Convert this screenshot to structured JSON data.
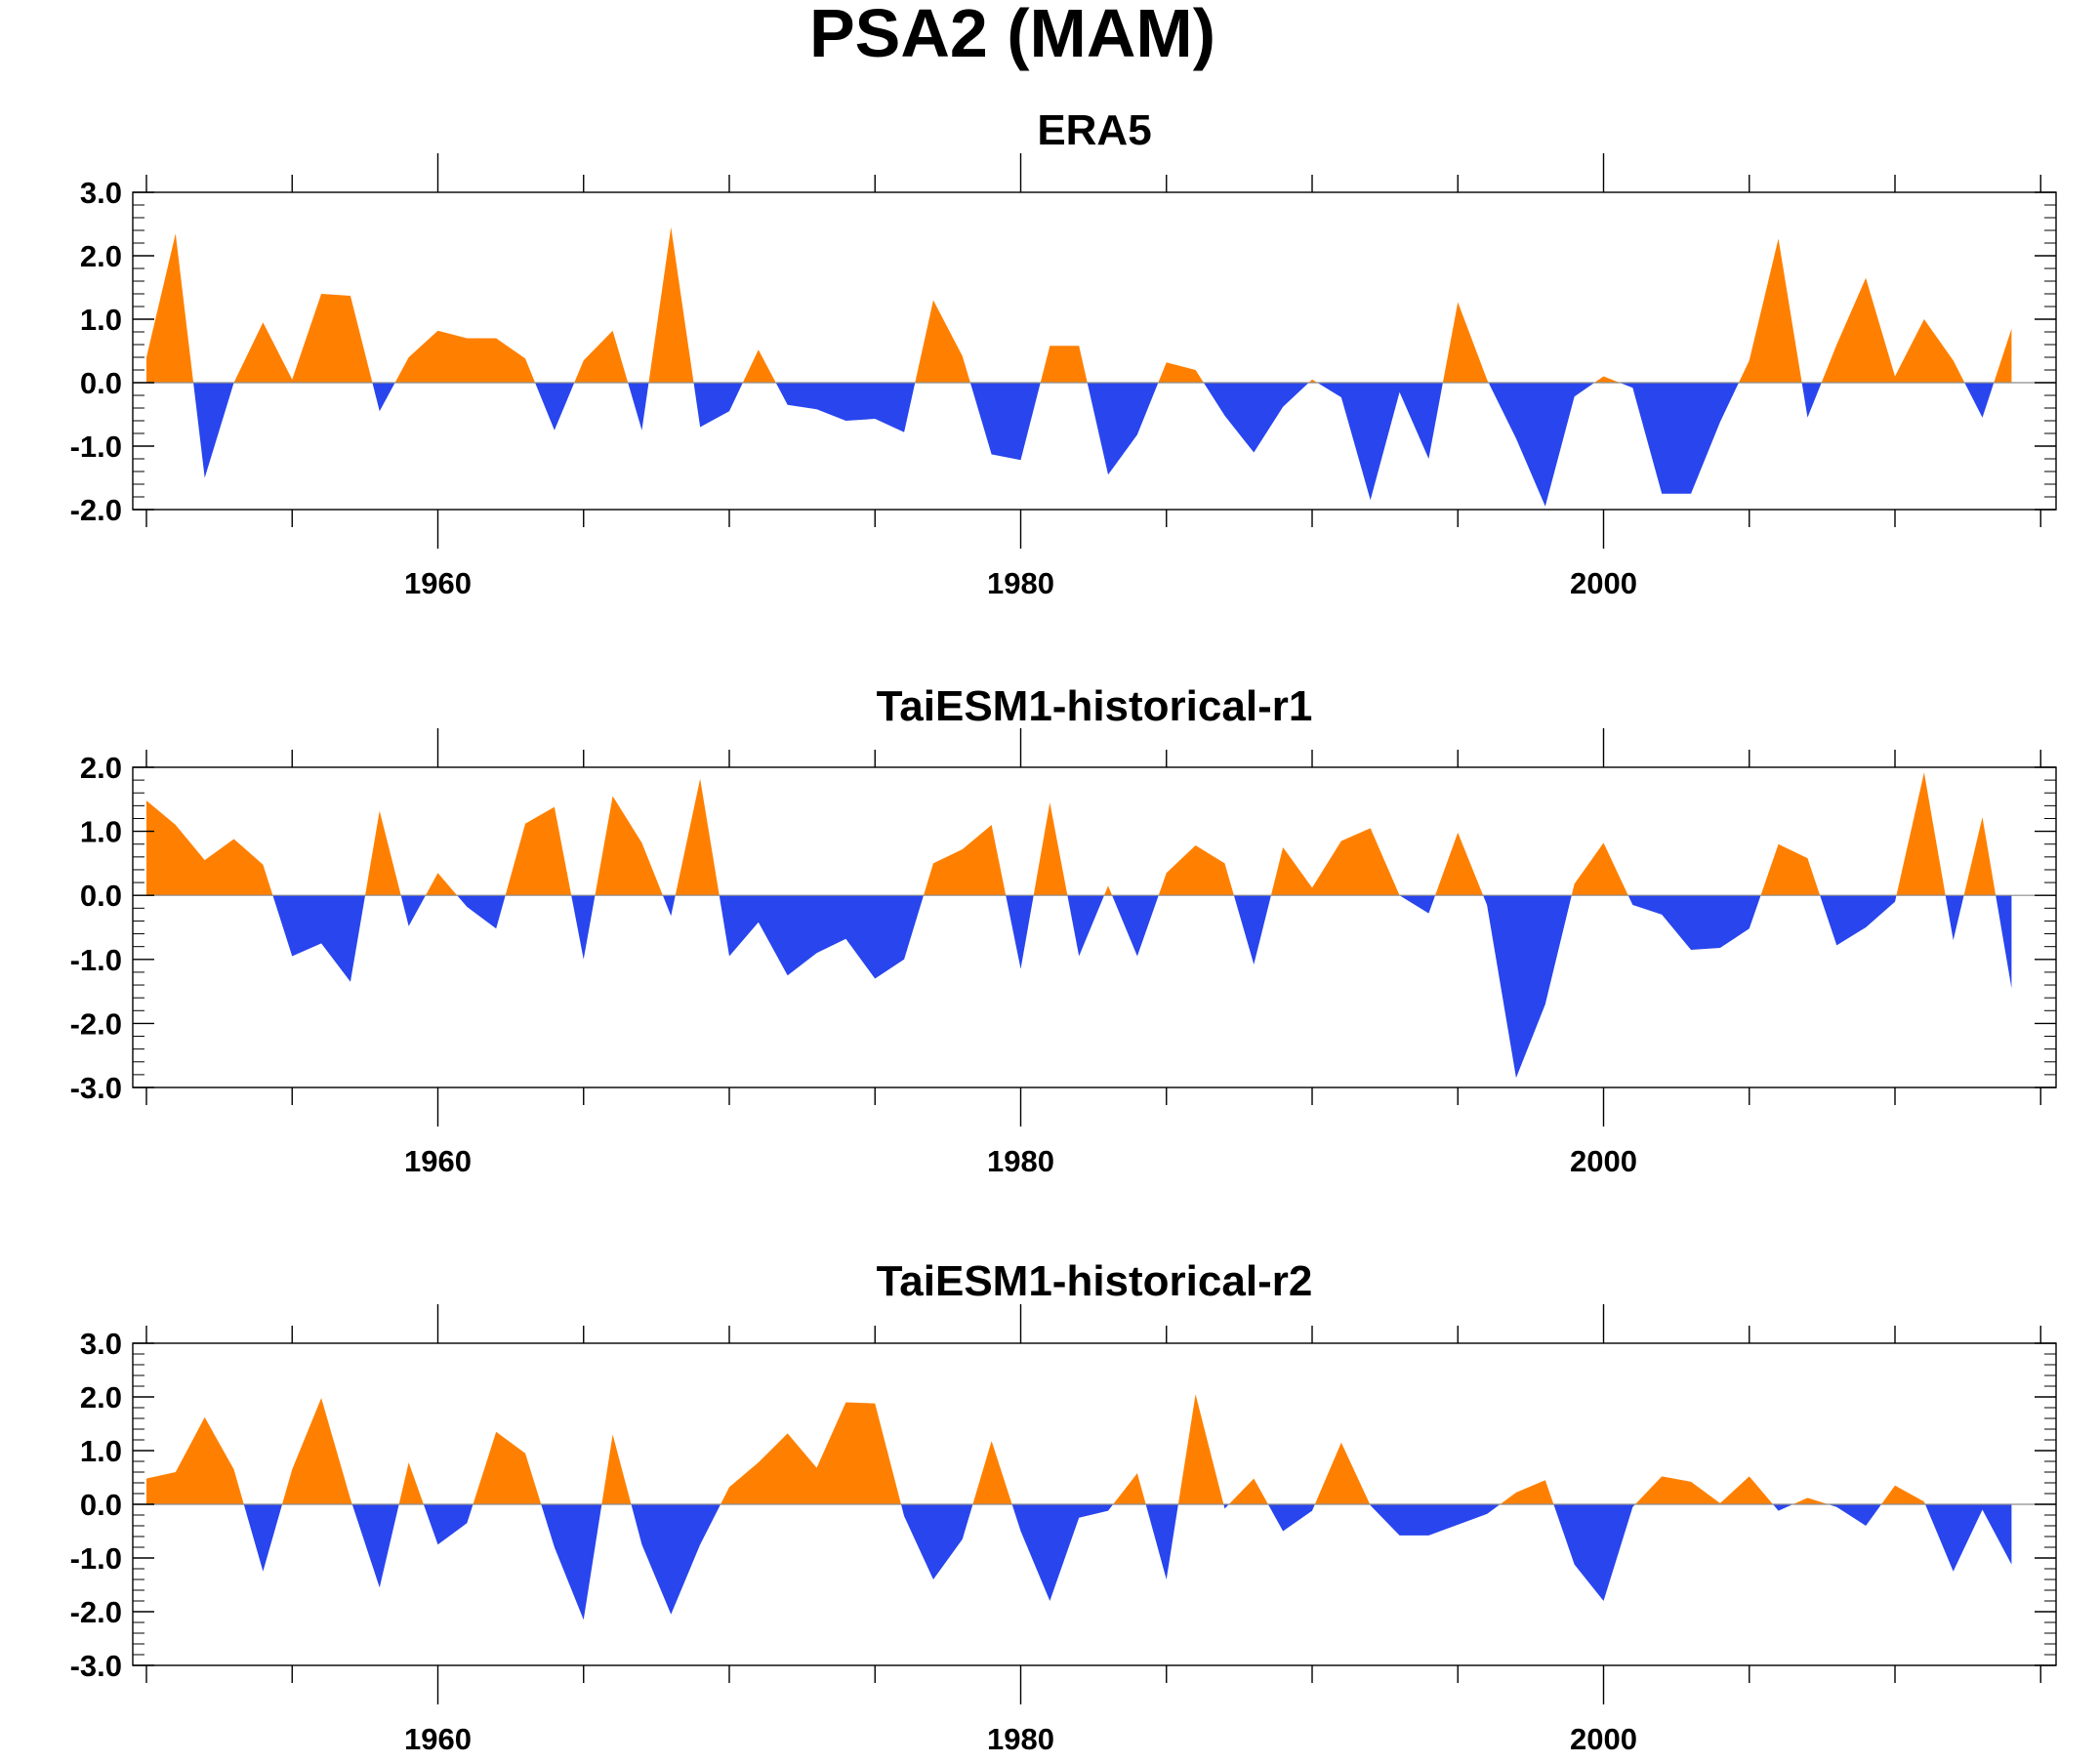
{
  "figure_title": "PSA2 (MAM)",
  "colors": {
    "positive": "#ff8000",
    "negative": "#2845ee",
    "frame": "#000000",
    "zero_line": "#8c8c8c"
  },
  "chart_data": [
    {
      "type": "area",
      "title": "ERA5",
      "xlim": [
        1950,
        2014
      ],
      "x_ticks": [
        1960,
        1980,
        2000
      ],
      "x_tick_labels": [
        "1960",
        "1980",
        "2000"
      ],
      "ylim": [
        -2.0,
        3.0
      ],
      "y_ticks": [
        -2.0,
        -1.0,
        0.0,
        1.0,
        2.0,
        3.0
      ],
      "y_tick_labels": [
        "-2.0",
        "-1.0",
        "0.0",
        "1.0",
        "2.0",
        "3.0"
      ],
      "x": [
        1950,
        1951,
        1952,
        1953,
        1954,
        1955,
        1956,
        1957,
        1958,
        1959,
        1960,
        1961,
        1962,
        1963,
        1964,
        1965,
        1966,
        1967,
        1968,
        1969,
        1970,
        1971,
        1972,
        1973,
        1974,
        1975,
        1976,
        1977,
        1978,
        1979,
        1980,
        1981,
        1982,
        1983,
        1984,
        1985,
        1986,
        1987,
        1988,
        1989,
        1990,
        1991,
        1992,
        1993,
        1994,
        1995,
        1996,
        1997,
        1998,
        1999,
        2000,
        2001,
        2002,
        2003,
        2004,
        2005,
        2006,
        2007,
        2008,
        2009,
        2010,
        2011,
        2012,
        2013,
        2014
      ],
      "values": [
        0.4,
        2.35,
        -1.5,
        0.0,
        0.95,
        0.05,
        1.4,
        1.37,
        -0.45,
        0.4,
        0.82,
        0.7,
        0.7,
        0.38,
        -0.75,
        0.35,
        0.82,
        -0.75,
        2.45,
        -0.7,
        -0.45,
        0.52,
        -0.35,
        -0.42,
        -0.6,
        -0.57,
        -0.78,
        1.3,
        0.42,
        -1.13,
        -1.22,
        0.58,
        0.58,
        -1.45,
        -0.82,
        0.32,
        0.2,
        -0.52,
        -1.1,
        -0.38,
        0.05,
        -0.23,
        -1.85,
        -0.15,
        -1.2,
        1.27,
        0.05,
        -0.88,
        -1.95,
        -0.22,
        0.1,
        -0.08,
        -1.75,
        -1.75,
        -0.62,
        0.35,
        2.27,
        -0.55,
        0.6,
        1.65,
        0.1,
        1.0,
        0.35,
        -0.55,
        0.85
      ]
    },
    {
      "type": "area",
      "title": "TaiESM1-historical-r1",
      "xlim": [
        1950,
        2014
      ],
      "x_ticks": [
        1960,
        1980,
        2000
      ],
      "x_tick_labels": [
        "1960",
        "1980",
        "2000"
      ],
      "ylim": [
        -3.0,
        2.0
      ],
      "y_ticks": [
        -3.0,
        -2.0,
        -1.0,
        0.0,
        1.0,
        2.0
      ],
      "y_tick_labels": [
        "-3.0",
        "-2.0",
        "-1.0",
        "0.0",
        "1.0",
        "2.0"
      ],
      "x": [
        1950,
        1951,
        1952,
        1953,
        1954,
        1955,
        1956,
        1957,
        1958,
        1959,
        1960,
        1961,
        1962,
        1963,
        1964,
        1965,
        1966,
        1967,
        1968,
        1969,
        1970,
        1971,
        1972,
        1973,
        1974,
        1975,
        1976,
        1977,
        1978,
        1979,
        1980,
        1981,
        1982,
        1983,
        1984,
        1985,
        1986,
        1987,
        1988,
        1989,
        1990,
        1991,
        1992,
        1993,
        1994,
        1995,
        1996,
        1997,
        1998,
        1999,
        2000,
        2001,
        2002,
        2003,
        2004,
        2005,
        2006,
        2007,
        2008,
        2009,
        2010,
        2011,
        2012,
        2013,
        2014
      ],
      "values": [
        1.48,
        1.1,
        0.55,
        0.88,
        0.48,
        -0.95,
        -0.75,
        -1.35,
        1.32,
        -0.48,
        0.35,
        -0.18,
        -0.52,
        1.12,
        1.38,
        -1.0,
        1.55,
        0.82,
        -0.32,
        1.82,
        -0.95,
        -0.42,
        -1.25,
        -0.9,
        -0.68,
        -1.3,
        -1.0,
        0.5,
        0.72,
        1.1,
        -1.15,
        1.45,
        -0.95,
        0.15,
        -0.95,
        0.35,
        0.78,
        0.5,
        -1.08,
        0.75,
        0.12,
        0.85,
        1.05,
        0.0,
        -0.28,
        0.98,
        -0.15,
        -2.85,
        -1.7,
        0.18,
        0.82,
        -0.15,
        -0.3,
        -0.85,
        -0.82,
        -0.52,
        0.8,
        0.58,
        -0.78,
        -0.5,
        -0.1,
        1.92,
        -0.7,
        1.22,
        -1.45
      ]
    },
    {
      "type": "area",
      "title": "TaiESM1-historical-r2",
      "xlim": [
        1950,
        2014
      ],
      "x_ticks": [
        1960,
        1980,
        2000
      ],
      "x_tick_labels": [
        "1960",
        "1980",
        "2000"
      ],
      "ylim": [
        -3.0,
        3.0
      ],
      "y_ticks": [
        -3.0,
        -2.0,
        -1.0,
        0.0,
        1.0,
        2.0,
        3.0
      ],
      "y_tick_labels": [
        "-3.0",
        "-2.0",
        "-1.0",
        "0.0",
        "1.0",
        "2.0",
        "3.0"
      ],
      "x": [
        1950,
        1951,
        1952,
        1953,
        1954,
        1955,
        1956,
        1957,
        1958,
        1959,
        1960,
        1961,
        1962,
        1963,
        1964,
        1965,
        1966,
        1967,
        1968,
        1969,
        1970,
        1971,
        1972,
        1973,
        1974,
        1975,
        1976,
        1977,
        1978,
        1979,
        1980,
        1981,
        1982,
        1983,
        1984,
        1985,
        1986,
        1987,
        1988,
        1989,
        1990,
        1991,
        1992,
        1993,
        1994,
        1995,
        1996,
        1997,
        1998,
        1999,
        2000,
        2001,
        2002,
        2003,
        2004,
        2005,
        2006,
        2007,
        2008,
        2009,
        2010,
        2011,
        2012,
        2013,
        2014
      ],
      "values": [
        0.48,
        0.6,
        1.62,
        0.65,
        -1.25,
        0.65,
        1.98,
        0.1,
        -1.55,
        0.78,
        -0.75,
        -0.35,
        1.35,
        0.95,
        -0.8,
        -2.15,
        1.3,
        -0.75,
        -2.05,
        -0.75,
        0.32,
        0.78,
        1.32,
        0.68,
        1.9,
        1.88,
        -0.22,
        -1.4,
        -0.65,
        1.18,
        -0.5,
        -1.8,
        -0.25,
        -0.12,
        0.58,
        -1.4,
        2.05,
        -0.08,
        0.48,
        -0.5,
        -0.12,
        1.15,
        -0.02,
        -0.58,
        -0.58,
        -0.38,
        -0.18,
        0.22,
        0.45,
        -1.12,
        -1.8,
        -0.05,
        0.52,
        0.42,
        0.02,
        0.52,
        -0.12,
        0.12,
        -0.05,
        -0.4,
        0.35,
        0.05,
        -1.25,
        -0.1,
        -1.12
      ]
    }
  ]
}
